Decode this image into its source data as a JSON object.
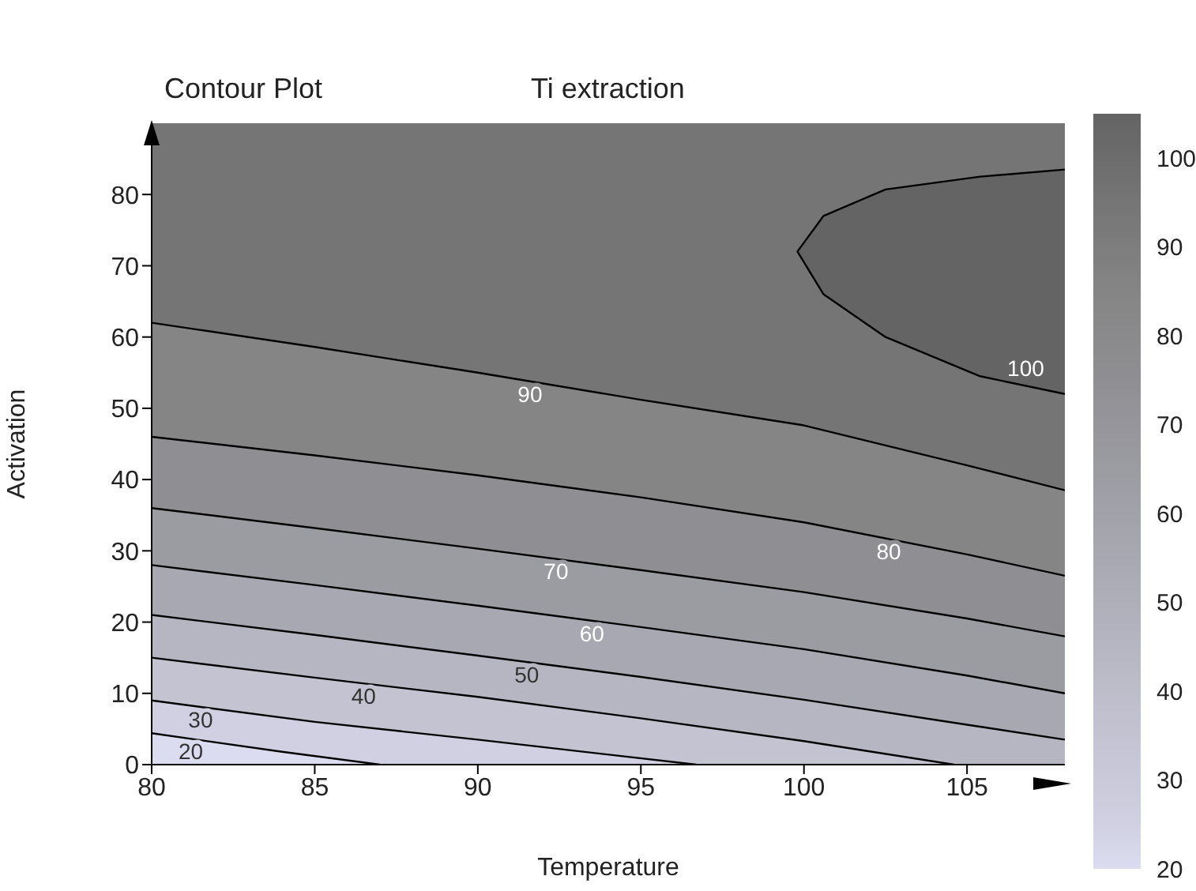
{
  "chart_data": {
    "type": "area",
    "title": "Ti extraction",
    "subtitle": "Contour Plot",
    "xlabel": "Temperature",
    "ylabel": "Activation",
    "xlim": [
      80,
      108
    ],
    "xticks": [
      80,
      85,
      90,
      95,
      100,
      105
    ],
    "ylim": [
      0,
      90
    ],
    "yticks": [
      0,
      10,
      20,
      30,
      40,
      50,
      60,
      70,
      80
    ],
    "clim": [
      20,
      105
    ],
    "cticks": [
      20,
      30,
      40,
      50,
      60,
      70,
      80,
      90,
      100
    ],
    "grid": false,
    "legend": false,
    "marker": "none",
    "line_style": "solid",
    "series": [
      {
        "name": "20",
        "color": "#dcdcf0",
        "x": [
          80,
          84,
          87
        ],
        "values": [
          4.4,
          1.8,
          0
        ]
      },
      {
        "name": "30",
        "color": "#d0d0e2",
        "x": [
          80,
          85,
          90,
          96.7
        ],
        "values": [
          9,
          6,
          3.5,
          0
        ]
      },
      {
        "name": "40",
        "color": "#c3c3d2",
        "x": [
          80,
          85,
          90,
          95,
          100,
          104.6
        ],
        "values": [
          15,
          12.2,
          9.5,
          6.5,
          3.3,
          0
        ]
      },
      {
        "name": "50",
        "color": "#b6b6c2",
        "x": [
          80,
          85,
          90,
          95,
          100,
          105,
          108
        ],
        "values": [
          21,
          18.2,
          15.3,
          12.3,
          9.1,
          5.6,
          3.5
        ]
      },
      {
        "name": "60",
        "color": "#a8a8b2",
        "x": [
          80,
          85,
          90,
          95,
          100,
          105,
          108
        ],
        "values": [
          28,
          25.2,
          22.3,
          19.3,
          16.2,
          12.5,
          10
        ]
      },
      {
        "name": "70",
        "color": "#9b9ba2",
        "x": [
          80,
          85,
          90,
          95,
          100,
          105,
          108
        ],
        "values": [
          36,
          33.2,
          30.3,
          27.3,
          24.2,
          20.5,
          18
        ]
      },
      {
        "name": "80",
        "color": "#8f8f93",
        "x": [
          80,
          85,
          90,
          95,
          100,
          105,
          108
        ],
        "values": [
          46,
          43.4,
          40.6,
          37.5,
          34,
          29.5,
          26.5
        ]
      },
      {
        "name": "90",
        "color": "#858585",
        "x": [
          80,
          85,
          90,
          95,
          100,
          105,
          108
        ],
        "values": [
          62,
          58.6,
          55,
          51.2,
          47.6,
          42,
          38.5
        ]
      },
      {
        "name": "100",
        "color": "#646464",
        "x": [
          108,
          105.4,
          102.5,
          100.6,
          99.8,
          100.6,
          102.5,
          105.4,
          108
        ],
        "values": [
          52,
          54.5,
          60,
          66,
          72,
          77,
          80.7,
          82.5,
          83.5
        ]
      }
    ]
  }
}
